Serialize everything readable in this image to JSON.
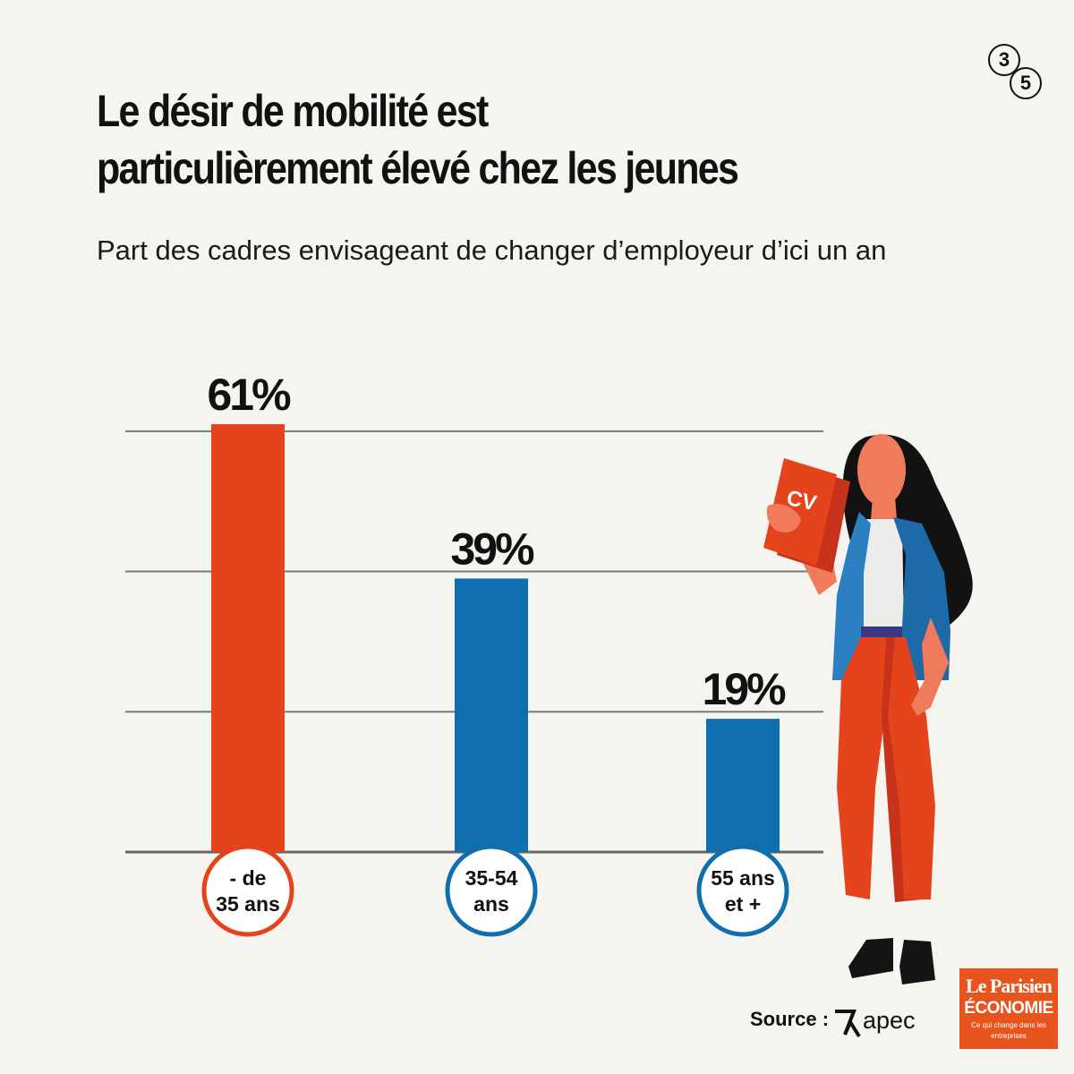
{
  "header": {
    "title_line1": "Le désir de mobilité est",
    "title_line2": "particulièrement élevé chez les jeunes",
    "subtitle": "Part des cadres envisageant de changer d’employeur d’ici un an",
    "page_current": "3",
    "page_total": "5"
  },
  "chart_data": {
    "type": "bar",
    "title": "Le désir de mobilité est particulièrement élevé chez les jeunes",
    "subtitle": "Part des cadres envisageant de changer d’employeur d’ici un an",
    "categories": [
      "- de 35 ans",
      "35-54 ans",
      "55 ans et +"
    ],
    "category_lines": [
      [
        "- de",
        "35 ans"
      ],
      [
        "35-54",
        "ans"
      ],
      [
        "55 ans",
        "et +"
      ]
    ],
    "values": [
      61,
      39,
      19
    ],
    "value_labels": [
      "61%",
      "39%",
      "19%"
    ],
    "unit": "%",
    "ylim": [
      0,
      61
    ],
    "gridlines": [
      20,
      40,
      60
    ],
    "colors": [
      "#e5431b",
      "#0f6fae",
      "#0f6fae"
    ],
    "legend": "none"
  },
  "illustration": {
    "cv_label": "CV"
  },
  "footer": {
    "source_label": "Source :",
    "source_name": "apec",
    "logo_line1": "Le Parisien",
    "logo_line2": "ÉCONOMIE",
    "logo_tagline": "Ce qui change dans les entreprises"
  },
  "colors": {
    "background": "#f5f4ee",
    "orange": "#e5431b",
    "blue": "#0f6fae",
    "grid": "#7a7a7a"
  }
}
